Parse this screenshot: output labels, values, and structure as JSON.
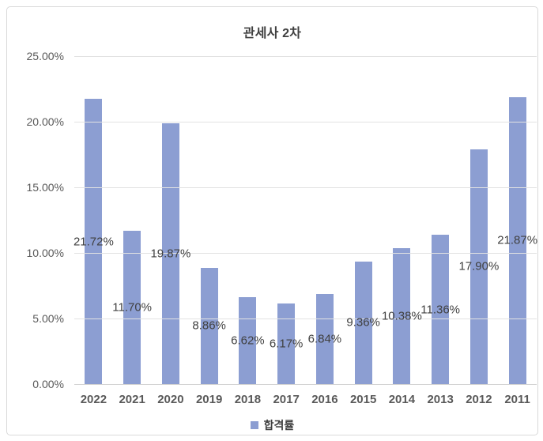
{
  "title": "관세사 2차",
  "legend": {
    "label": "합격률"
  },
  "colors": {
    "bar": "#8c9ed2",
    "gridline": "#e2e2e2",
    "baseline": "#d4d4d4",
    "title_text": "#404040",
    "axis_text": "#595959",
    "value_label_text": "#404040",
    "frame_border": "#d9d9d9",
    "background": "#ffffff"
  },
  "chart_data": {
    "type": "bar",
    "title": "관세사 2차",
    "categories": [
      "2022",
      "2021",
      "2020",
      "2019",
      "2018",
      "2017",
      "2016",
      "2015",
      "2014",
      "2013",
      "2012",
      "2011"
    ],
    "series": [
      {
        "name": "합격률",
        "values": [
          21.72,
          11.7,
          19.87,
          8.86,
          6.62,
          6.17,
          6.84,
          9.36,
          10.38,
          11.36,
          17.9,
          21.87
        ]
      }
    ],
    "value_labels": [
      "21.72%",
      "11.70%",
      "19.87%",
      "8.86%",
      "6.62%",
      "6.17%",
      "6.84%",
      "9.36%",
      "10.38%",
      "11.36%",
      "17.90%",
      "21.87%"
    ],
    "y_ticks": [
      {
        "value": 25,
        "label": "25.00%"
      },
      {
        "value": 20,
        "label": "20.00%"
      },
      {
        "value": 15,
        "label": "15.00%"
      },
      {
        "value": 10,
        "label": "10.00%"
      },
      {
        "value": 5,
        "label": "5.00%"
      },
      {
        "value": 0,
        "label": "0.00%"
      }
    ],
    "ylim": [
      0,
      25
    ],
    "xlabel": "",
    "ylabel": "",
    "grid": true,
    "legend_position": "bottom",
    "data_label_position": "inside-center"
  }
}
